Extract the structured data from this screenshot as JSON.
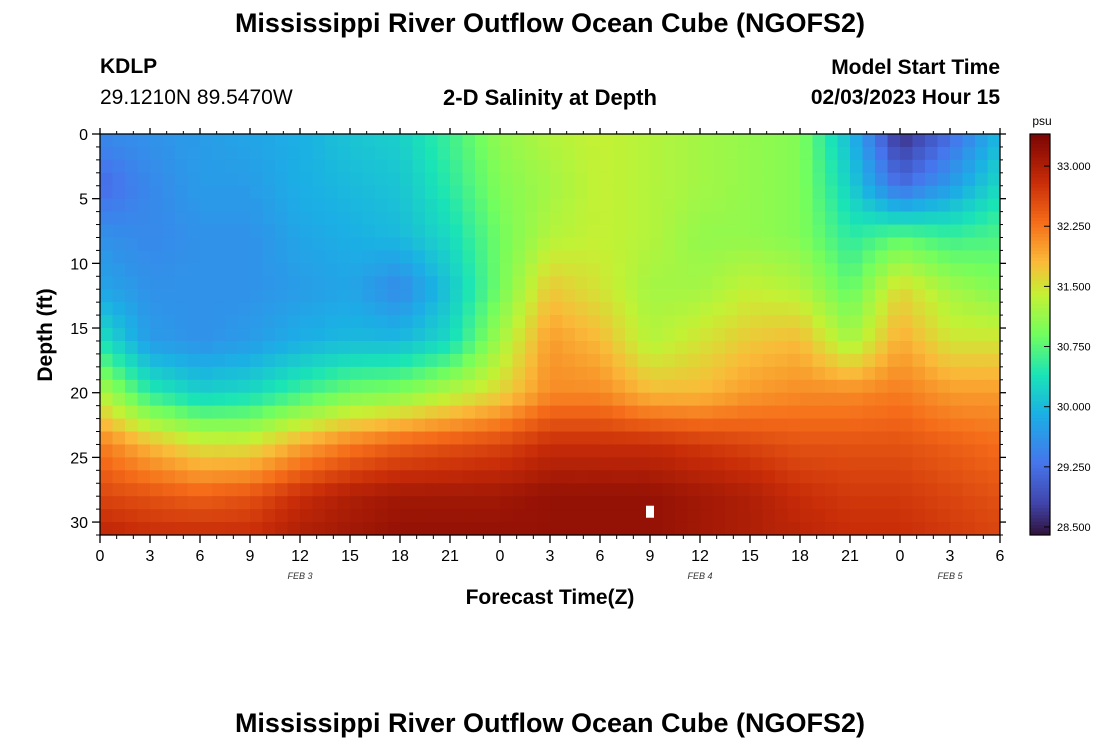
{
  "header": {
    "title": "Mississippi River Outflow Ocean Cube (NGOFS2)",
    "station_id": "KDLP",
    "station_coords": "29.1210N  89.5470W",
    "plot_subtitle": "2-D Salinity at Depth",
    "model_start_label": "Model Start Time",
    "model_start_value": "02/03/2023 Hour 15"
  },
  "footer": {
    "title_repeat": "Mississippi River Outflow Ocean Cube (NGOFS2)"
  },
  "chart_data": {
    "type": "heatmap",
    "xlabel": "Forecast Time(Z)",
    "ylabel": "Depth (ft)",
    "x_tick_labels": [
      "0",
      "3",
      "6",
      "9",
      "12",
      "15",
      "18",
      "21",
      "0",
      "3",
      "6",
      "9",
      "12",
      "15",
      "18",
      "21",
      "0",
      "3",
      "6"
    ],
    "x_hours": [
      0,
      54
    ],
    "date_labels": [
      {
        "text": "FEB 3",
        "hour": 12
      },
      {
        "text": "FEB 4",
        "hour": 36
      },
      {
        "text": "FEB 5",
        "hour": 51
      }
    ],
    "y_ticks": [
      0,
      5,
      10,
      15,
      20,
      25,
      30
    ],
    "ylim": [
      0,
      31
    ],
    "y_inverted": true,
    "colorbar": {
      "unit": "psu",
      "range": [
        28.4,
        33.4
      ],
      "ticks": [
        "33.000",
        "32.250",
        "31.500",
        "30.750",
        "30.000",
        "29.250",
        "28.500"
      ],
      "tick_values": [
        33.0,
        32.25,
        31.5,
        30.75,
        30.0,
        29.25,
        28.5
      ],
      "colormap": "turbo"
    },
    "grid_hours": [
      0,
      3,
      6,
      9,
      12,
      15,
      18,
      21,
      24,
      27,
      30,
      33,
      36,
      39,
      42,
      45,
      48,
      51,
      54
    ],
    "grid_depths": [
      0,
      4,
      8,
      12,
      16,
      20,
      24,
      28,
      31
    ],
    "values": [
      [
        29.5,
        29.6,
        29.7,
        29.8,
        29.9,
        30.1,
        30.2,
        30.6,
        31.1,
        31.3,
        31.4,
        31.3,
        31.2,
        31.1,
        31.0,
        30.0,
        28.6,
        29.2,
        30.0
      ],
      [
        29.2,
        29.5,
        29.7,
        29.7,
        29.9,
        30.0,
        30.1,
        30.5,
        31.0,
        31.2,
        31.4,
        31.3,
        31.2,
        31.1,
        31.0,
        30.2,
        29.2,
        29.7,
        30.3
      ],
      [
        29.6,
        29.5,
        29.6,
        29.6,
        29.8,
        29.9,
        30.0,
        30.3,
        30.9,
        31.3,
        31.4,
        31.3,
        31.1,
        31.1,
        31.0,
        30.5,
        30.8,
        30.6,
        30.7
      ],
      [
        29.8,
        29.6,
        29.6,
        29.6,
        29.7,
        29.8,
        29.5,
        30.1,
        30.9,
        31.7,
        31.5,
        31.2,
        31.2,
        31.4,
        31.3,
        30.8,
        31.6,
        31.2,
        31.0
      ],
      [
        30.4,
        29.7,
        29.6,
        29.7,
        29.9,
        30.0,
        30.0,
        30.3,
        31.2,
        32.0,
        31.8,
        31.3,
        31.5,
        31.7,
        31.8,
        31.2,
        31.9,
        31.5,
        31.5
      ],
      [
        31.3,
        30.5,
        30.2,
        30.3,
        30.6,
        30.9,
        31.0,
        31.3,
        31.6,
        32.1,
        32.1,
        31.8,
        31.8,
        32.0,
        32.1,
        32.1,
        32.2,
        32.0,
        32.0
      ],
      [
        32.2,
        31.8,
        31.5,
        31.5,
        31.9,
        32.2,
        32.4,
        32.5,
        32.6,
        32.8,
        32.8,
        32.8,
        32.7,
        32.6,
        32.5,
        32.5,
        32.5,
        32.4,
        32.3
      ],
      [
        32.6,
        32.5,
        32.4,
        32.5,
        32.8,
        33.0,
        33.1,
        33.1,
        33.1,
        33.2,
        33.2,
        33.2,
        33.1,
        33.0,
        32.8,
        32.7,
        32.7,
        32.6,
        32.5
      ],
      [
        32.9,
        32.8,
        32.8,
        32.8,
        33.0,
        33.1,
        33.2,
        33.2,
        33.2,
        33.2,
        33.2,
        33.2,
        33.1,
        33.0,
        32.9,
        32.8,
        32.8,
        32.7,
        32.6
      ]
    ],
    "marker": {
      "hour": 33,
      "depth": 29.2
    }
  }
}
